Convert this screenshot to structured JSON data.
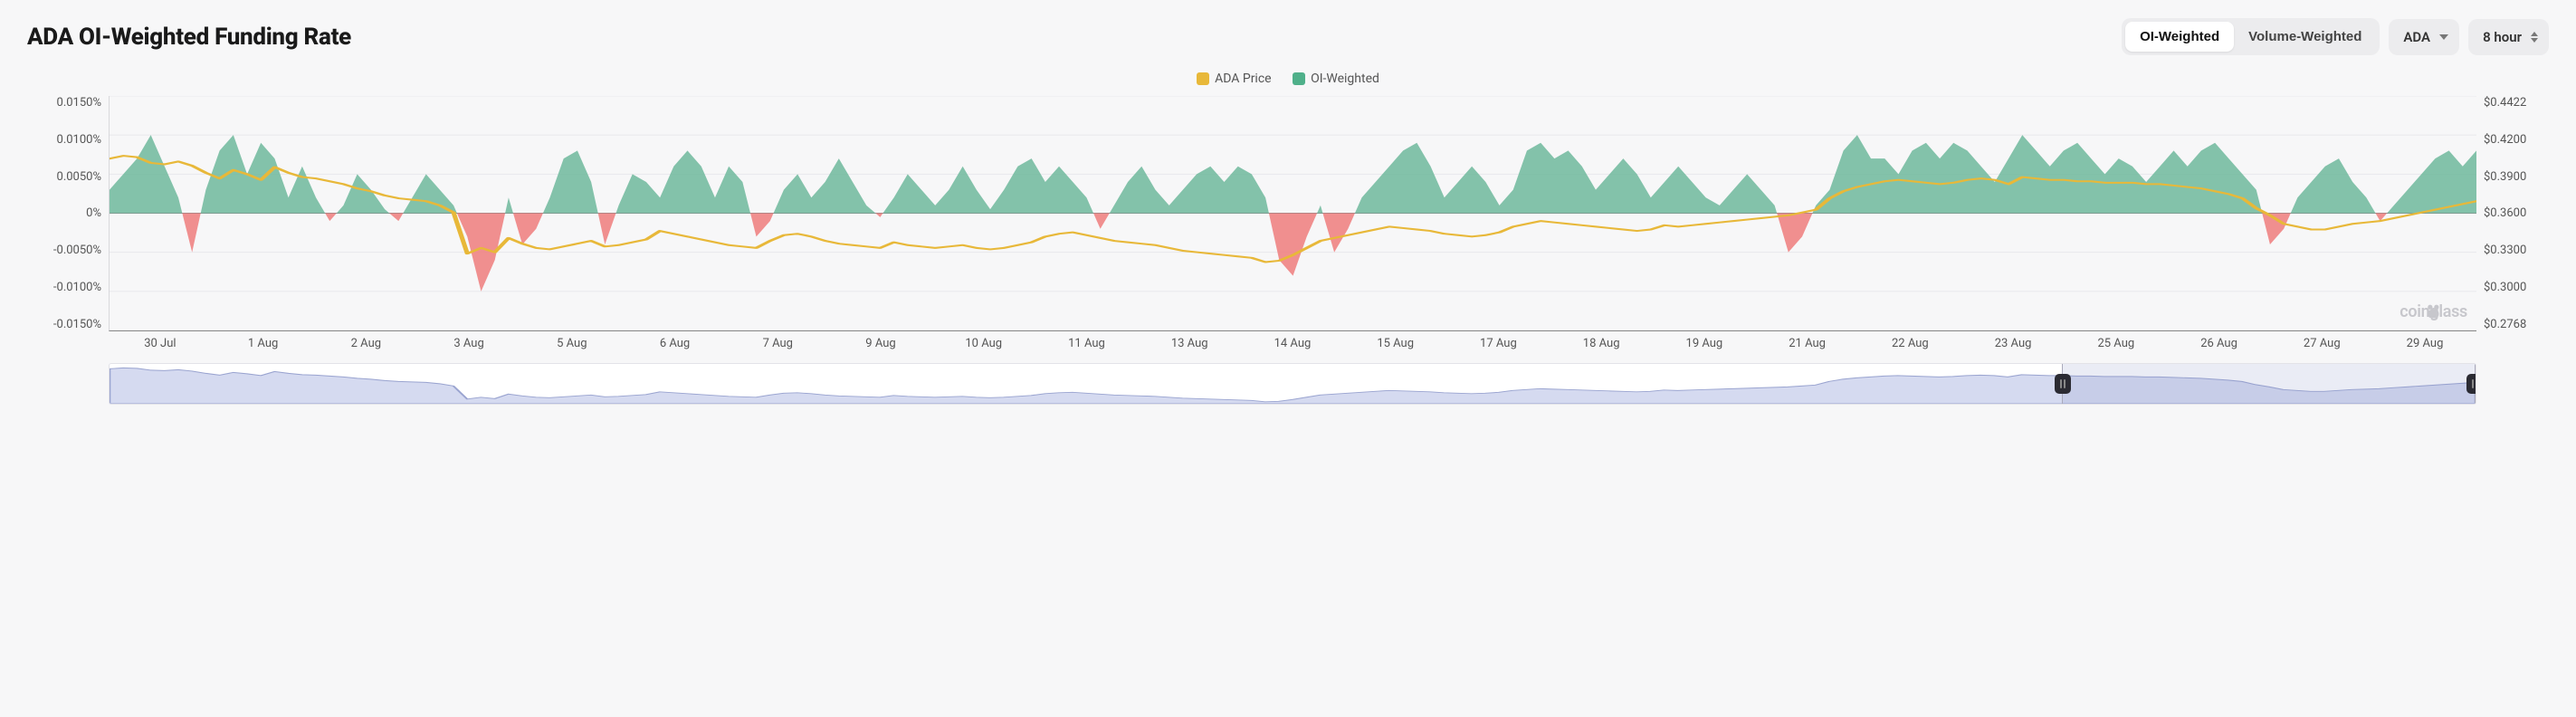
{
  "title": "ADA OI-Weighted Funding Rate",
  "controls": {
    "segmented": {
      "options": [
        "OI-Weighted",
        "Volume-Weighted"
      ],
      "active_index": 0
    },
    "asset_dropdown": {
      "value": "ADA"
    },
    "interval_dropdown": {
      "value": "8 hour"
    }
  },
  "legend": {
    "items": [
      {
        "label": "ADA Price",
        "color": "#e8b839"
      },
      {
        "label": "OI-Weighted",
        "color": "#4fb08a"
      }
    ]
  },
  "watermark": "coinglass",
  "chart": {
    "type": "dual-axis-area-line",
    "background_color": "#f7f7f8",
    "grid_color": "#e9e9ec",
    "axis_color": "#888",
    "left_axis": {
      "label_format": "percent",
      "min": -0.015,
      "max": 0.015,
      "ticks": [
        0.015,
        0.01,
        0.005,
        0,
        -0.005,
        -0.01,
        -0.015
      ],
      "tick_labels": [
        "0.0150%",
        "0.0100%",
        "0.0050%",
        "0%",
        "-0.0050%",
        "-0.0100%",
        "-0.0150%"
      ],
      "label_fontsize": 13
    },
    "right_axis": {
      "label_format": "currency",
      "min": 0.2768,
      "max": 0.4422,
      "ticks": [
        0.4422,
        0.42,
        0.39,
        0.36,
        0.33,
        0.3,
        0.2768
      ],
      "tick_labels": [
        "$0.4422",
        "$0.4200",
        "$0.3900",
        "$0.3600",
        "$0.3300",
        "$0.3000",
        "$0.2768"
      ],
      "label_fontsize": 13
    },
    "x_axis": {
      "tick_labels": [
        "30 Jul",
        "1 Aug",
        "2 Aug",
        "3 Aug",
        "5 Aug",
        "6 Aug",
        "7 Aug",
        "9 Aug",
        "10 Aug",
        "11 Aug",
        "13 Aug",
        "14 Aug",
        "15 Aug",
        "17 Aug",
        "18 Aug",
        "19 Aug",
        "21 Aug",
        "22 Aug",
        "23 Aug",
        "25 Aug",
        "26 Aug",
        "27 Aug",
        "29 Aug"
      ],
      "label_fontsize": 13
    },
    "series_funding": {
      "baseline": 0,
      "positive_fill": "#6fb99c",
      "positive_fill_opacity": 0.85,
      "negative_fill": "#ef7d7d",
      "negative_fill_opacity": 0.85,
      "values": [
        0.003,
        0.005,
        0.007,
        0.01,
        0.006,
        0.002,
        -0.005,
        0.003,
        0.008,
        0.01,
        0.005,
        0.009,
        0.007,
        0.002,
        0.006,
        0.002,
        -0.001,
        0.001,
        0.005,
        0.003,
        0.0005,
        -0.001,
        0.002,
        0.005,
        0.003,
        0.001,
        -0.003,
        -0.01,
        -0.006,
        0.002,
        -0.004,
        -0.002,
        0.002,
        0.007,
        0.008,
        0.004,
        -0.004,
        0.001,
        0.005,
        0.004,
        0.002,
        0.006,
        0.008,
        0.006,
        0.002,
        0.006,
        0.004,
        -0.003,
        -0.001,
        0.003,
        0.005,
        0.002,
        0.004,
        0.007,
        0.004,
        0.001,
        -0.0005,
        0.002,
        0.005,
        0.003,
        0.001,
        0.003,
        0.006,
        0.003,
        0.0005,
        0.003,
        0.006,
        0.007,
        0.004,
        0.006,
        0.004,
        0.002,
        -0.002,
        0.001,
        0.004,
        0.006,
        0.003,
        0.001,
        0.003,
        0.005,
        0.006,
        0.004,
        0.006,
        0.005,
        0.002,
        -0.006,
        -0.008,
        -0.003,
        0.001,
        -0.005,
        -0.002,
        0.002,
        0.004,
        0.006,
        0.008,
        0.009,
        0.006,
        0.002,
        0.004,
        0.006,
        0.004,
        0.001,
        0.003,
        0.008,
        0.009,
        0.007,
        0.008,
        0.006,
        0.003,
        0.005,
        0.007,
        0.005,
        0.002,
        0.004,
        0.006,
        0.004,
        0.002,
        0.001,
        0.003,
        0.005,
        0.003,
        0.001,
        -0.005,
        -0.003,
        0.001,
        0.003,
        0.008,
        0.01,
        0.007,
        0.007,
        0.005,
        0.008,
        0.009,
        0.007,
        0.009,
        0.008,
        0.006,
        0.004,
        0.007,
        0.01,
        0.008,
        0.006,
        0.008,
        0.009,
        0.007,
        0.005,
        0.007,
        0.006,
        0.004,
        0.006,
        0.008,
        0.006,
        0.008,
        0.009,
        0.007,
        0.005,
        0.003,
        -0.004,
        -0.002,
        0.002,
        0.004,
        0.006,
        0.007,
        0.004,
        0.002,
        -0.001,
        0.001,
        0.003,
        0.005,
        0.007,
        0.008,
        0.006,
        0.008
      ]
    },
    "series_price": {
      "color": "#e8b839",
      "line_width": 2,
      "values": [
        0.398,
        0.4,
        0.399,
        0.395,
        0.394,
        0.396,
        0.393,
        0.388,
        0.384,
        0.39,
        0.387,
        0.383,
        0.392,
        0.388,
        0.385,
        0.384,
        0.382,
        0.38,
        0.377,
        0.375,
        0.372,
        0.37,
        0.369,
        0.368,
        0.365,
        0.36,
        0.331,
        0.335,
        0.332,
        0.342,
        0.338,
        0.335,
        0.334,
        0.336,
        0.338,
        0.34,
        0.336,
        0.337,
        0.339,
        0.341,
        0.347,
        0.345,
        0.343,
        0.341,
        0.339,
        0.337,
        0.336,
        0.335,
        0.34,
        0.344,
        0.345,
        0.343,
        0.34,
        0.338,
        0.337,
        0.336,
        0.335,
        0.339,
        0.337,
        0.336,
        0.335,
        0.336,
        0.337,
        0.335,
        0.334,
        0.335,
        0.337,
        0.339,
        0.343,
        0.345,
        0.346,
        0.344,
        0.342,
        0.34,
        0.339,
        0.338,
        0.337,
        0.335,
        0.333,
        0.332,
        0.331,
        0.33,
        0.329,
        0.328,
        0.325,
        0.326,
        0.33,
        0.335,
        0.34,
        0.342,
        0.344,
        0.346,
        0.348,
        0.35,
        0.349,
        0.348,
        0.347,
        0.345,
        0.344,
        0.343,
        0.344,
        0.346,
        0.35,
        0.352,
        0.354,
        0.353,
        0.352,
        0.351,
        0.35,
        0.349,
        0.348,
        0.347,
        0.348,
        0.351,
        0.35,
        0.351,
        0.352,
        0.353,
        0.354,
        0.355,
        0.356,
        0.357,
        0.358,
        0.36,
        0.362,
        0.37,
        0.375,
        0.378,
        0.38,
        0.382,
        0.383,
        0.382,
        0.381,
        0.38,
        0.381,
        0.383,
        0.384,
        0.383,
        0.38,
        0.385,
        0.384,
        0.383,
        0.383,
        0.382,
        0.382,
        0.381,
        0.381,
        0.381,
        0.38,
        0.38,
        0.379,
        0.378,
        0.377,
        0.375,
        0.373,
        0.37,
        0.363,
        0.358,
        0.352,
        0.35,
        0.348,
        0.348,
        0.35,
        0.352,
        0.353,
        0.354,
        0.356,
        0.358,
        0.36,
        0.362,
        0.364,
        0.366,
        0.368
      ]
    },
    "navigator": {
      "fill": "#d5daf0",
      "stroke": "#9aa4d0",
      "selection": {
        "start_pct": 82.5,
        "end_pct": 100
      }
    }
  }
}
